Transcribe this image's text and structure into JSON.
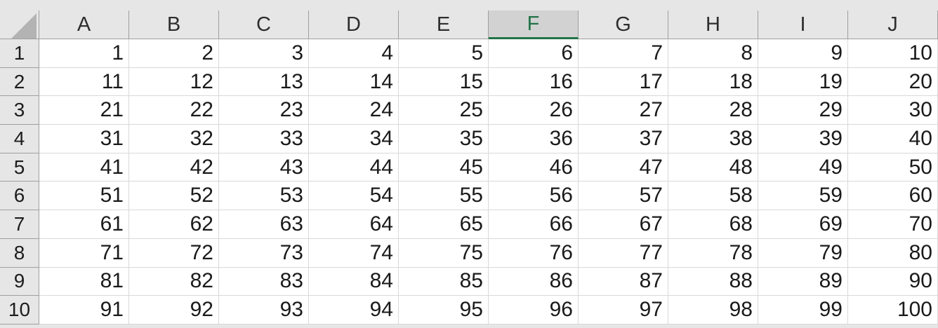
{
  "sheet": {
    "corner_label": "select-all",
    "columns": [
      {
        "label": "A",
        "selected": false
      },
      {
        "label": "B",
        "selected": false
      },
      {
        "label": "C",
        "selected": false
      },
      {
        "label": "D",
        "selected": false
      },
      {
        "label": "E",
        "selected": false
      },
      {
        "label": "F",
        "selected": true
      },
      {
        "label": "G",
        "selected": false
      },
      {
        "label": "H",
        "selected": false
      },
      {
        "label": "I",
        "selected": false
      },
      {
        "label": "J",
        "selected": false
      }
    ],
    "rows": [
      {
        "header": "1",
        "cells": [
          "1",
          "2",
          "3",
          "4",
          "5",
          "6",
          "7",
          "8",
          "9",
          "10"
        ]
      },
      {
        "header": "2",
        "cells": [
          "11",
          "12",
          "13",
          "14",
          "15",
          "16",
          "17",
          "18",
          "19",
          "20"
        ]
      },
      {
        "header": "3",
        "cells": [
          "21",
          "22",
          "23",
          "24",
          "25",
          "26",
          "27",
          "28",
          "29",
          "30"
        ]
      },
      {
        "header": "4",
        "cells": [
          "31",
          "32",
          "33",
          "34",
          "35",
          "36",
          "37",
          "38",
          "39",
          "40"
        ]
      },
      {
        "header": "5",
        "cells": [
          "41",
          "42",
          "43",
          "44",
          "45",
          "46",
          "47",
          "48",
          "49",
          "50"
        ]
      },
      {
        "header": "6",
        "cells": [
          "51",
          "52",
          "53",
          "54",
          "55",
          "56",
          "57",
          "58",
          "59",
          "60"
        ]
      },
      {
        "header": "7",
        "cells": [
          "61",
          "62",
          "63",
          "64",
          "65",
          "66",
          "67",
          "68",
          "69",
          "70"
        ]
      },
      {
        "header": "8",
        "cells": [
          "71",
          "72",
          "73",
          "74",
          "75",
          "76",
          "77",
          "78",
          "79",
          "80"
        ]
      },
      {
        "header": "9",
        "cells": [
          "81",
          "82",
          "83",
          "84",
          "85",
          "86",
          "87",
          "88",
          "89",
          "90"
        ]
      },
      {
        "header": "10",
        "cells": [
          "91",
          "92",
          "93",
          "94",
          "95",
          "96",
          "97",
          "98",
          "99",
          "100"
        ]
      }
    ],
    "colors": {
      "header_bg": "#e6e6e6",
      "selected_header_bg": "#d2d2d2",
      "accent_green": "#217346",
      "header_grid_line": "#9f9f9f",
      "cell_grid_line": "#d9d9d9",
      "cell_bg": "#ffffff",
      "cell_text": "#1a1a1a",
      "select_all_triangle": "#b3b3b3"
    }
  }
}
